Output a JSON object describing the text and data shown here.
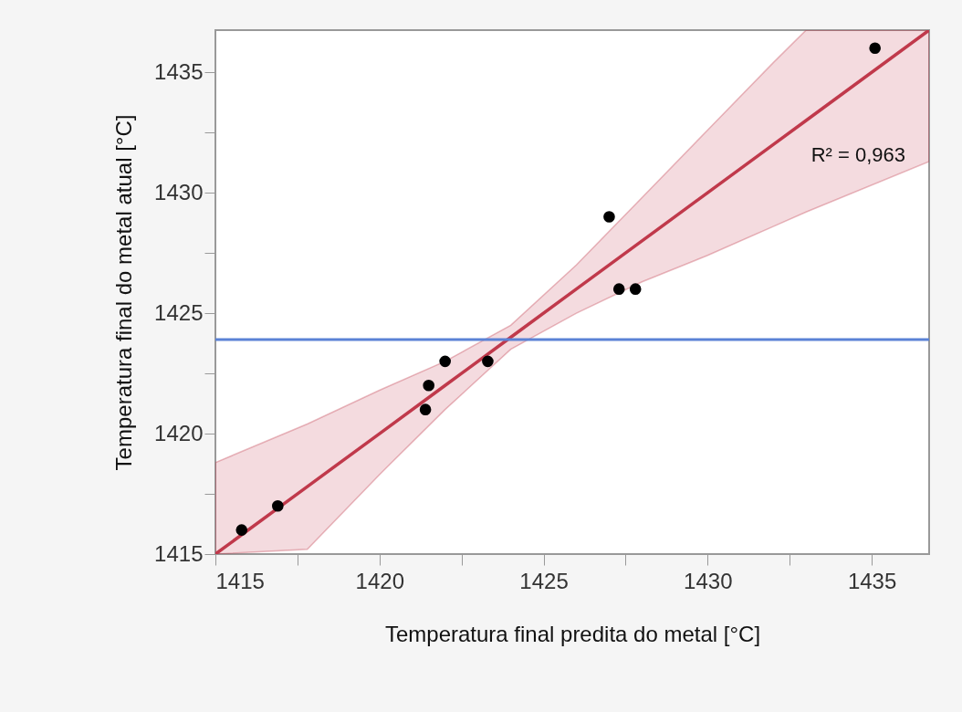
{
  "chart_data": {
    "type": "scatter",
    "xlabel": "Temperatura  final predita do metal [°C]",
    "ylabel": "Temperatura final do  metal atual [°C]",
    "xlim": [
      1415,
      1436.75
    ],
    "ylim": [
      1415,
      1436.75
    ],
    "xticks": [
      1415,
      {
        "value": 1417.5,
        "label": null
      },
      1420,
      {
        "value": 1422.5,
        "label": null
      },
      1425,
      {
        "value": 1427.5,
        "label": null
      },
      1430,
      {
        "value": 1432.5,
        "label": null
      },
      1435
    ],
    "yticks": [
      1415,
      {
        "value": 1417.5,
        "label": null
      },
      1420,
      {
        "value": 1422.5,
        "label": null
      },
      1425,
      {
        "value": 1427.5,
        "label": null
      },
      1430,
      {
        "value": 1432.5,
        "label": null
      },
      1435
    ],
    "grid": false,
    "marker": "circle",
    "series": [
      {
        "type": "line",
        "marker": "none",
        "color": "#c0394b",
        "x": [
          1415,
          1417.8,
          1420,
          1422,
          1424,
          1426,
          1428,
          1430,
          1432,
          1433,
          1436.75
        ],
        "values": [
          1415,
          1417.8,
          1420,
          1422,
          1424,
          1426,
          1428,
          1430,
          1432,
          1433,
          1436.75
        ],
        "lower": [
          1415,
          1415.2,
          1418.3,
          1421,
          1423.5,
          1425,
          1426.3,
          1427.4,
          1428.6,
          1429.2,
          1431.3
        ],
        "upper": [
          1418.8,
          1420.4,
          1421.8,
          1423,
          1424.5,
          1427,
          1429.8,
          1432.6,
          1435.4,
          1436.75,
          1436.75
        ]
      },
      {
        "color": "#000000",
        "x": [
          1415.8,
          1416.9,
          1421.4,
          1421.5,
          1422,
          1423.3,
          1427,
          1427.3,
          1427.8,
          1435.1
        ],
        "values": [
          1416,
          1417,
          1421,
          1422,
          1423,
          1423,
          1429,
          1426,
          1426,
          1436
        ]
      }
    ],
    "ref_lines": [
      {
        "axis": "y",
        "value": 1423.9,
        "color": "#5b82d6"
      }
    ],
    "annotations": [
      "R² = 0,963"
    ]
  }
}
